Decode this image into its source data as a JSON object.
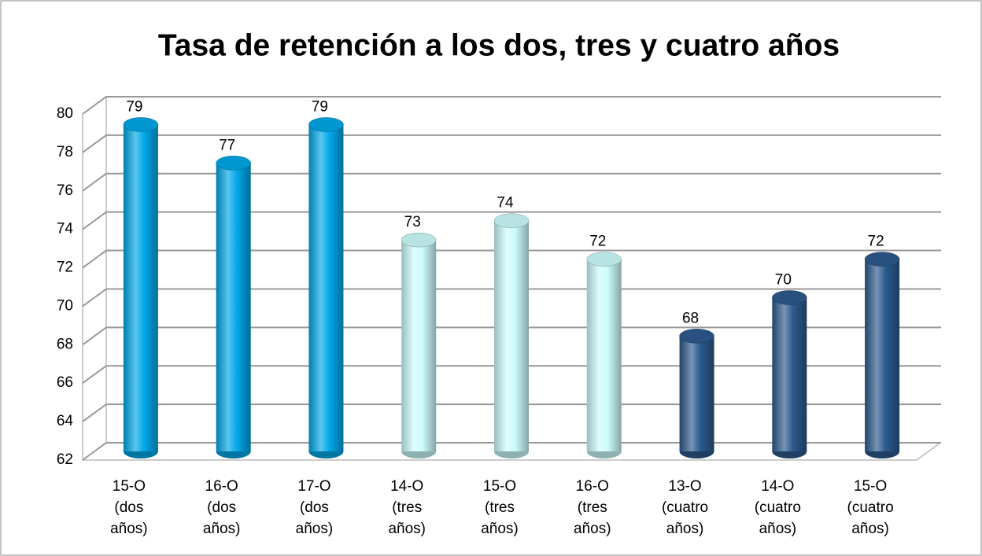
{
  "chart_data": {
    "type": "bar",
    "title": "Tasa de retención a los dos, tres y cuatro años",
    "categories": [
      "15-O (dos años)",
      "16-O (dos años)",
      "17-O (dos años)",
      "14-O (tres años)",
      "15-O (tres años)",
      "16-O (tres años)",
      "13-O (cuatro años)",
      "14-O (cuatro años)",
      "15-O (cuatro años)"
    ],
    "values": [
      79,
      77,
      79,
      73,
      74,
      72,
      68,
      70,
      72
    ],
    "colors": [
      "#00a8e8",
      "#00a8e8",
      "#00a8e8",
      "#ccfcfc",
      "#ccfcfc",
      "#ccfcfc",
      "#2c5a8e",
      "#2c5a8e",
      "#2c5a8e"
    ],
    "ylim": [
      62,
      80
    ],
    "yticks": [
      62,
      64,
      66,
      68,
      70,
      72,
      74,
      76,
      78,
      80
    ],
    "grid": true
  }
}
